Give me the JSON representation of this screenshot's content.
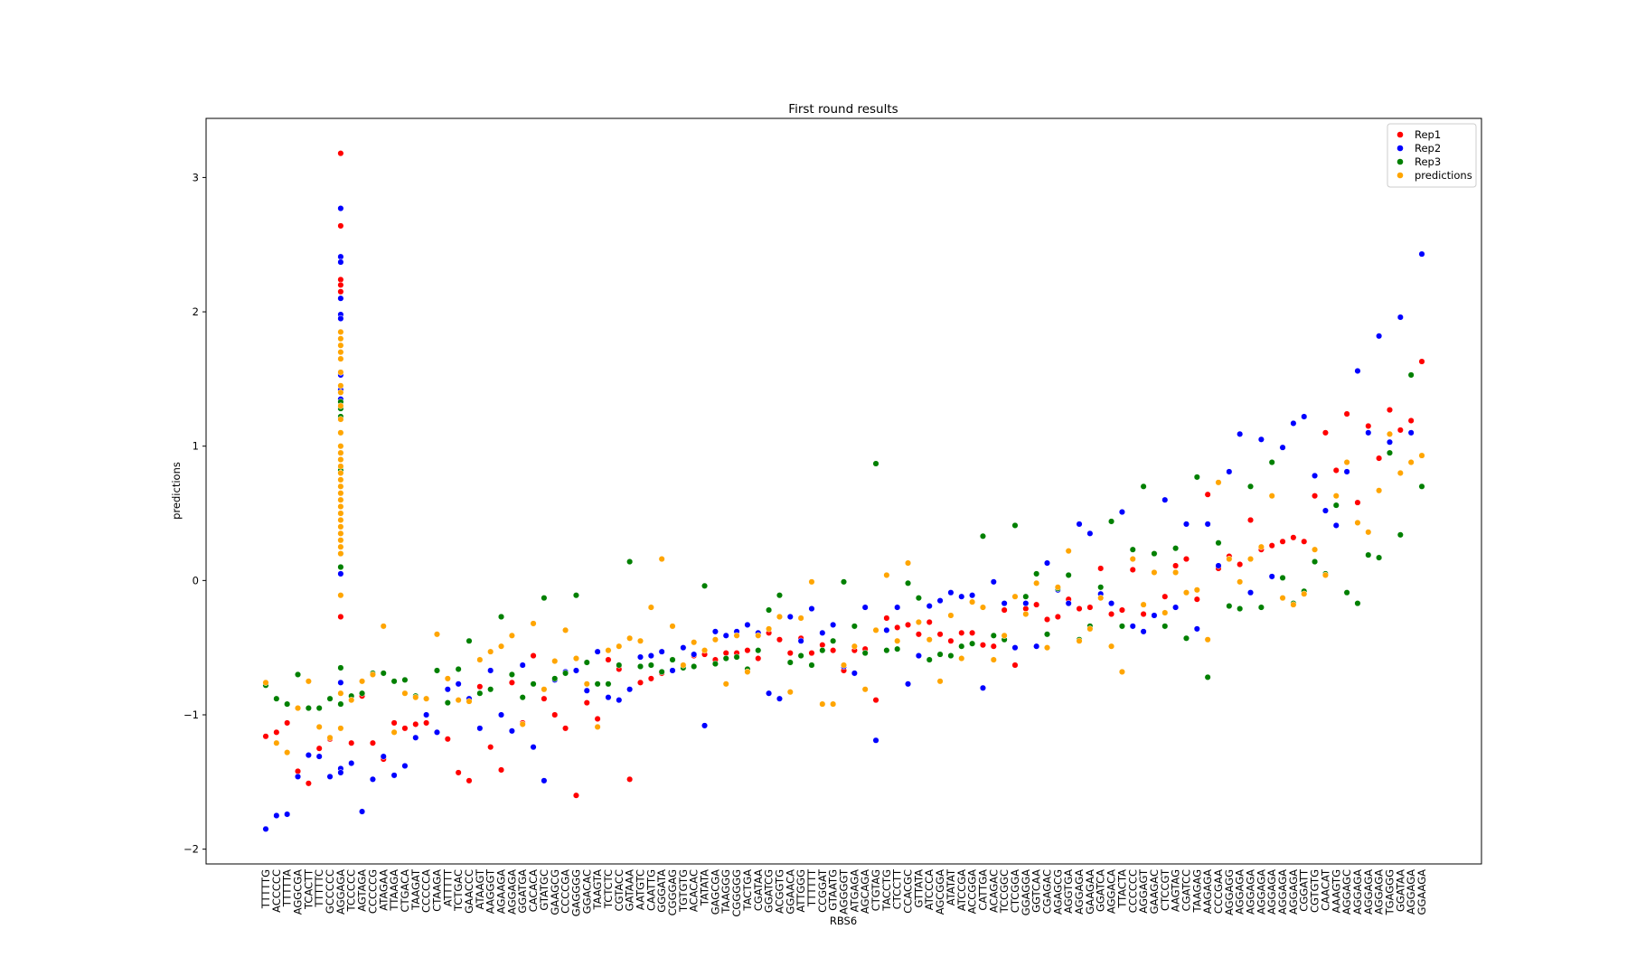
{
  "chart_data": {
    "type": "scatter",
    "title": "First round results",
    "x_label": "RBS6",
    "y_label": "predictions",
    "legend": "upper right",
    "categories": [
      "TTTTTG",
      "ACCCCC",
      "TTTTTA",
      "AGGCGA",
      "TCACTT",
      "TTTTTC",
      "GCCCCC",
      "AGGAGA",
      "TCCCCC",
      "AGTAGA",
      "CCCCCG",
      "ATAGAA",
      "TTAAGA",
      "CTGACA",
      "TAAGAT",
      "CCCCCA",
      "CTAAGA",
      "ATTTTT",
      "TCTGAC",
      "GAACCC",
      "ATAAGT",
      "AAGGGT",
      "AGAAGA",
      "AGGAGA",
      "GGATGA",
      "CACACA",
      "GTATGC",
      "GAAGCG",
      "CCCCGA",
      "GAGGGG",
      "GGACAC",
      "TAAGTA",
      "TCTCTC",
      "CGTACC",
      "GATAAA",
      "AATGTC",
      "CAATTG",
      "GGGATA",
      "CGGGAG",
      "TGTGTG",
      "ACACAC",
      "TATATA",
      "GAGCGA",
      "TAAGGG",
      "CGGGGG",
      "TACTGA",
      "CGATAA",
      "GGATCG",
      "ACGGTG",
      "GGAACA",
      "ATTGGG",
      "TTTTTT",
      "CCGGAT",
      "GTAATG",
      "AGGGGT",
      "ATGAGA",
      "AGCAGA",
      "CTGTAG",
      "TACCTG",
      "CTCCTT",
      "CCACGC",
      "GTTATA",
      "ATCCCA",
      "AGCGGA",
      "ATATAT",
      "ATCCGA",
      "ACCGGA",
      "CATTGA",
      "ACAGAC",
      "TCCGGC",
      "CTCGGA",
      "GGAGGA",
      "GGTCAA",
      "CGAGAC",
      "AGAGCG",
      "AGGTGA",
      "AGGAGA",
      "GAAGAA",
      "GGATCA",
      "AGGACA",
      "TTACTA",
      "CCCCCC",
      "AGGAGT",
      "GAAGAC",
      "CTCCGT",
      "AAGTAG",
      "CGATCC",
      "TAAGAG",
      "AAGAGA",
      "CCCGAA",
      "AGGAGG",
      "AGGAGA",
      "AGGAGA",
      "AGGAGA",
      "AGGAGA",
      "AGGAGA",
      "AGGAGA",
      "CGGATT",
      "CGTGTG",
      "CAACAT",
      "AAAGTG",
      "AGGAGC",
      "AGGAGA",
      "AGGAGA",
      "AGGAGA",
      "TGAGGG",
      "GGATAA",
      "AGGAGA",
      "GGAAGA"
    ],
    "ylim": [
      -2.11,
      3.44
    ],
    "yticks": [
      {
        "value": -2,
        "label": "−2"
      },
      {
        "value": -1,
        "label": "−1"
      },
      0,
      1,
      2,
      3
    ],
    "series": [
      {
        "name": "Rep1",
        "color": "#ff0000",
        "values": [
          -1.16,
          -1.13,
          -1.06,
          -1.42,
          -1.51,
          -1.25,
          -1.18,
          [
            3.18,
            2.64,
            2.24,
            2.2,
            2.15,
            -0.27
          ],
          -1.21,
          -0.86,
          -1.21,
          -1.33,
          -1.06,
          -1.1,
          -1.07,
          -1.06,
          -1.13,
          -1.18,
          -1.43,
          -1.49,
          -0.79,
          -1.24,
          -1.41,
          -0.76,
          -1.06,
          -0.56,
          -0.88,
          -1.0,
          -1.1,
          -1.6,
          -0.91,
          -1.03,
          -0.59,
          -0.66,
          -1.48,
          -0.76,
          -0.73,
          -0.69,
          -0.59,
          -0.63,
          -0.56,
          -0.55,
          -0.59,
          -0.54,
          -0.54,
          -0.52,
          -0.58,
          -0.39,
          -0.44,
          -0.54,
          -0.43,
          -0.54,
          -0.48,
          -0.52,
          -0.67,
          -0.52,
          -0.51,
          -0.89,
          -0.28,
          -0.35,
          -0.33,
          -0.4,
          -0.31,
          -0.4,
          -0.45,
          -0.39,
          -0.39,
          -0.48,
          -0.49,
          -0.22,
          -0.63,
          -0.21,
          -0.18,
          -0.29,
          -0.27,
          -0.14,
          -0.21,
          -0.2,
          0.09,
          -0.25,
          -0.22,
          0.08,
          -0.25,
          0.2,
          -0.12,
          0.11,
          0.16,
          -0.14,
          0.64,
          0.09,
          0.18,
          0.12,
          0.45,
          0.23,
          0.26,
          0.29,
          0.32,
          0.29,
          0.63,
          1.1,
          0.82,
          1.24,
          0.58,
          1.15,
          0.91,
          1.27,
          1.12,
          1.19,
          1.63
        ]
      },
      {
        "name": "Rep2",
        "color": "#0000ff",
        "values": [
          -1.85,
          -1.75,
          -1.74,
          -1.46,
          -1.3,
          -1.31,
          -1.46,
          [
            2.77,
            2.41,
            2.37,
            2.1,
            1.98,
            1.95,
            1.53,
            1.42,
            1.35,
            1.2,
            0.95,
            0.85,
            0.6,
            0.35,
            0.05,
            -0.76,
            -1.4,
            -1.43
          ],
          -1.36,
          -1.72,
          -1.48,
          -1.31,
          -1.45,
          -1.38,
          -1.17,
          -1.0,
          -1.13,
          -0.81,
          -0.77,
          -0.88,
          -1.1,
          -0.67,
          -1.0,
          -1.12,
          -0.63,
          -1.24,
          -1.49,
          -0.74,
          -0.68,
          -0.67,
          -0.82,
          -0.53,
          -0.87,
          -0.89,
          -0.81,
          -0.57,
          -0.56,
          -0.53,
          -0.67,
          -0.5,
          -0.55,
          -1.08,
          -0.38,
          -0.41,
          -0.38,
          -0.33,
          -0.39,
          -0.84,
          -0.88,
          -0.27,
          -0.45,
          -0.21,
          -0.39,
          -0.33,
          -0.64,
          -0.69,
          -0.2,
          -1.19,
          -0.37,
          -0.2,
          -0.77,
          -0.56,
          -0.19,
          -0.15,
          -0.09,
          -0.12,
          -0.11,
          -0.8,
          -0.01,
          -0.17,
          -0.5,
          -0.17,
          -0.49,
          0.13,
          -0.07,
          -0.17,
          0.42,
          0.35,
          -0.1,
          -0.17,
          0.51,
          -0.34,
          -0.38,
          -0.26,
          0.6,
          -0.2,
          0.42,
          -0.36,
          0.42,
          0.11,
          0.81,
          1.09,
          -0.09,
          1.05,
          0.03,
          0.99,
          1.17,
          1.22,
          0.78,
          0.52,
          0.41,
          0.81,
          1.56,
          1.1,
          1.82,
          1.03,
          1.96,
          1.1,
          2.43
        ]
      },
      {
        "name": "Rep3",
        "color": "#008000",
        "values": [
          -0.78,
          -0.88,
          -0.92,
          -0.7,
          -0.95,
          -0.95,
          -0.88,
          [
            1.55,
            1.33,
            1.28,
            1.22,
            1.1,
            1.0,
            0.9,
            0.82,
            0.7,
            0.5,
            0.3,
            0.2,
            0.1,
            -0.65,
            -0.92
          ],
          -0.86,
          -0.84,
          -0.69,
          -0.69,
          -0.75,
          -0.74,
          -0.86,
          -0.88,
          -0.67,
          -0.91,
          -0.66,
          -0.45,
          -0.84,
          -0.81,
          -0.27,
          -0.7,
          -0.87,
          -0.77,
          -0.13,
          -0.73,
          -0.69,
          -0.11,
          -0.61,
          -0.77,
          -0.77,
          -0.63,
          0.14,
          -0.64,
          -0.63,
          -0.68,
          -0.59,
          -0.65,
          -0.64,
          -0.04,
          -0.62,
          -0.58,
          -0.57,
          -0.66,
          -0.52,
          -0.22,
          -0.11,
          -0.61,
          -0.56,
          -0.63,
          -0.52,
          -0.45,
          -0.01,
          -0.34,
          -0.54,
          0.87,
          -0.52,
          -0.51,
          -0.02,
          -0.13,
          -0.59,
          -0.55,
          -0.56,
          -0.49,
          -0.47,
          0.33,
          -0.41,
          -0.44,
          0.41,
          -0.12,
          0.05,
          -0.4,
          -0.06,
          0.04,
          -0.44,
          -0.34,
          -0.05,
          0.44,
          -0.34,
          0.23,
          0.7,
          0.2,
          -0.34,
          0.24,
          -0.43,
          0.77,
          -0.72,
          0.28,
          -0.19,
          -0.21,
          0.7,
          -0.2,
          0.88,
          0.02,
          -0.17,
          -0.08,
          0.14,
          0.05,
          0.56,
          -0.09,
          -0.17,
          0.19,
          0.17,
          0.95,
          0.34,
          1.53,
          0.7
        ]
      },
      {
        "name": "predictions",
        "color": "#ffa500",
        "values": [
          -0.76,
          -1.21,
          -1.28,
          -0.95,
          -0.75,
          -1.09,
          -1.17,
          [
            1.85,
            1.8,
            1.75,
            1.7,
            1.65,
            1.55,
            1.45,
            1.4,
            1.3,
            1.2,
            1.1,
            1.0,
            0.95,
            0.9,
            0.85,
            0.8,
            0.75,
            0.7,
            0.65,
            0.6,
            0.55,
            0.5,
            0.45,
            0.4,
            0.35,
            0.3,
            0.25,
            0.2,
            -0.11,
            -0.84,
            -1.1
          ],
          -0.89,
          -0.75,
          -0.7,
          -0.34,
          -1.13,
          -0.84,
          -0.87,
          -0.88,
          -0.4,
          -0.73,
          -0.89,
          -0.9,
          -0.59,
          -0.53,
          -0.49,
          -0.41,
          -1.07,
          -0.32,
          -0.81,
          -0.6,
          -0.37,
          -0.58,
          -0.77,
          -1.09,
          -0.52,
          -0.49,
          -0.43,
          -0.45,
          -0.2,
          0.16,
          -0.34,
          -0.63,
          -0.46,
          -0.52,
          -0.44,
          -0.77,
          -0.41,
          -0.68,
          -0.41,
          -0.36,
          -0.27,
          -0.83,
          -0.28,
          -0.01,
          -0.92,
          -0.92,
          -0.63,
          -0.49,
          -0.81,
          -0.37,
          0.04,
          -0.45,
          0.13,
          -0.31,
          -0.44,
          -0.75,
          -0.26,
          -0.58,
          -0.16,
          -0.2,
          -0.59,
          -0.41,
          -0.12,
          -0.25,
          -0.02,
          -0.5,
          -0.05,
          0.22,
          -0.45,
          -0.36,
          -0.13,
          -0.49,
          -0.68,
          0.16,
          -0.18,
          0.06,
          -0.24,
          0.06,
          -0.09,
          -0.07,
          -0.44,
          0.73,
          0.16,
          -0.01,
          0.16,
          0.25,
          0.63,
          -0.13,
          -0.18,
          -0.1,
          0.23,
          0.04,
          0.63,
          0.88,
          0.43,
          0.36,
          0.67,
          1.09,
          0.8,
          0.88,
          0.93
        ]
      }
    ]
  }
}
